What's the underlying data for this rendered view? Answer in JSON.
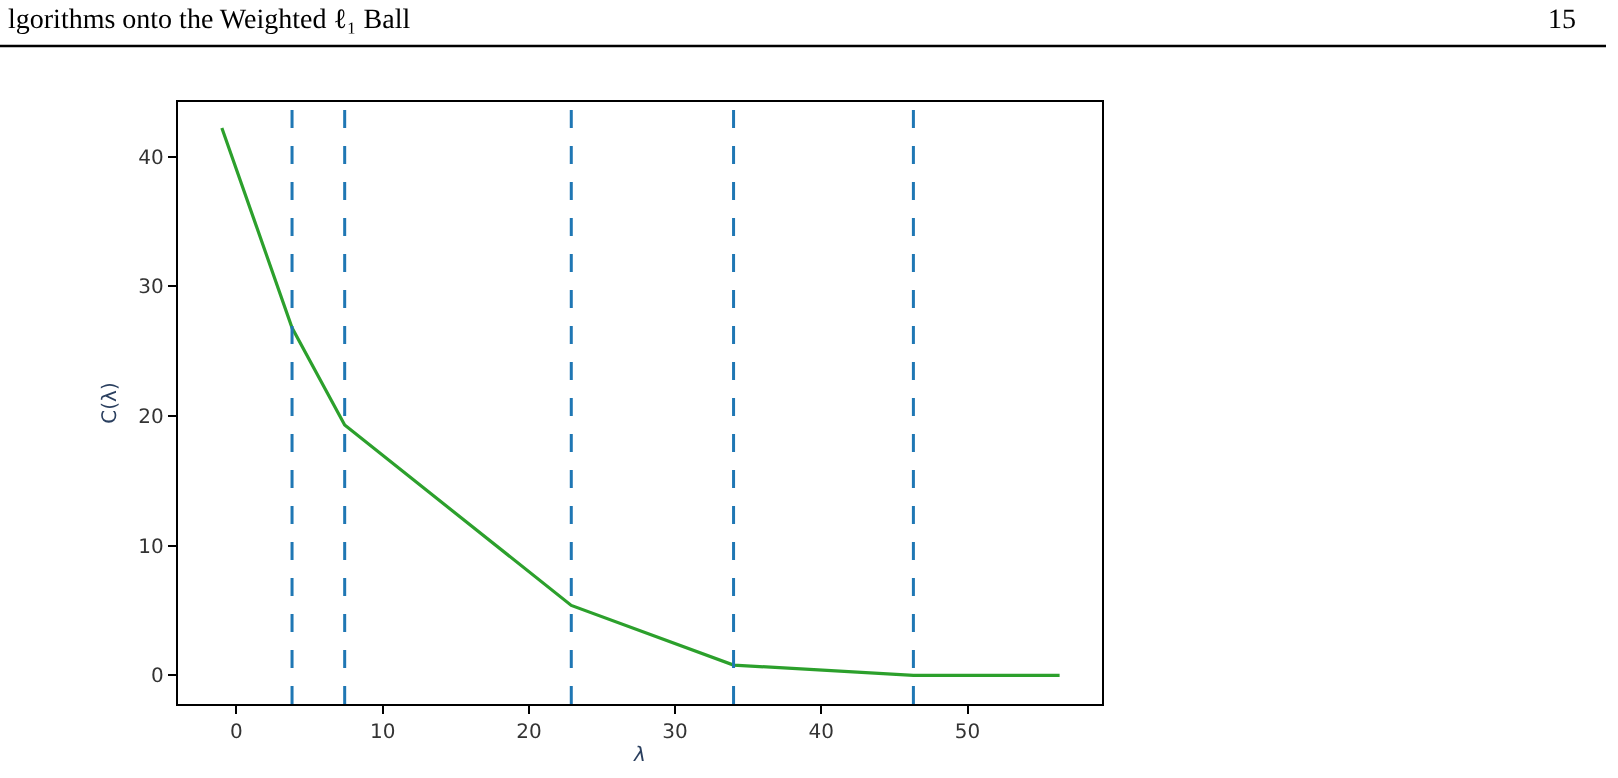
{
  "chart_data": {
    "type": "line",
    "xlabel": "λ",
    "ylabel": "C(λ)",
    "annotations": [
      "lgorithms onto the Weighted ℓ₁ Ball",
      "15"
    ],
    "x": [
      -1.0,
      3.8,
      7.4,
      22.9,
      34.0,
      46.3,
      56.3
    ],
    "series": [
      {
        "color": "#2ca02c",
        "values": [
          42.2,
          26.8,
          19.3,
          5.4,
          0.8,
          0.0,
          0.0
        ]
      }
    ],
    "xlim": [
      -4.0,
      59.2
    ],
    "ylim": [
      -2.2,
      44.2
    ],
    "xticks": [
      0,
      10,
      20,
      30,
      40,
      50
    ],
    "yticks": [
      0,
      10,
      20,
      30,
      40
    ],
    "ref_lines": [
      {
        "axis": "x",
        "value": 3.8,
        "color": "#1f77b4",
        "line_style": "dashed"
      },
      {
        "axis": "x",
        "value": 7.4,
        "color": "#1f77b4",
        "line_style": "dashed"
      },
      {
        "axis": "x",
        "value": 22.9,
        "color": "#1f77b4",
        "line_style": "dashed"
      },
      {
        "axis": "x",
        "value": 34.0,
        "color": "#1f77b4",
        "line_style": "dashed"
      },
      {
        "axis": "x",
        "value": 46.3,
        "color": "#1f77b4",
        "line_style": "dashed"
      }
    ]
  }
}
